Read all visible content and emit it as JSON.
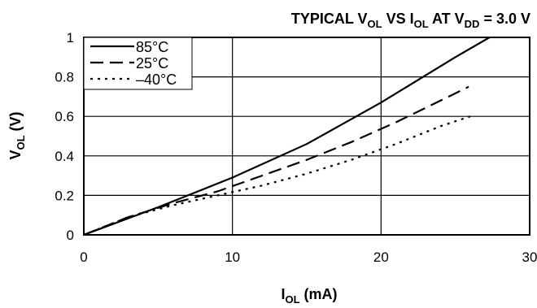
{
  "chart_data": {
    "type": "line",
    "title": {
      "pre": "TYPICAL V",
      "sub1": "OL",
      "mid": " VS I",
      "sub2": "OL",
      "mid2": " AT V",
      "sub3": "DD",
      "post": " = 3.0 V"
    },
    "xlabel": {
      "main": "I",
      "sub": "OL",
      "post": " (mA)"
    },
    "ylabel": {
      "main": "V",
      "sub": "OL",
      "post": " (V)"
    },
    "xlim": [
      0,
      30
    ],
    "ylim": [
      0,
      1
    ],
    "xticks": [
      "0",
      "10",
      "20",
      "30"
    ],
    "yticks": [
      "0",
      "0.2",
      "0.4",
      "0.6",
      "0.8",
      "1"
    ],
    "grid": true,
    "legend_position": "top-left",
    "series": [
      {
        "name": "85°C",
        "dash": "solid",
        "color": "#000000",
        "x": [
          0,
          5,
          10,
          15,
          20,
          25,
          27.3
        ],
        "y": [
          0,
          0.14,
          0.29,
          0.46,
          0.67,
          0.9,
          1.0
        ]
      },
      {
        "name": "25°C",
        "dash": "dashed",
        "color": "#000000",
        "x": [
          0,
          3,
          6,
          9,
          12,
          15,
          18,
          21,
          24,
          25.9
        ],
        "y": [
          0,
          0.09,
          0.16,
          0.22,
          0.3,
          0.38,
          0.47,
          0.57,
          0.68,
          0.75
        ]
      },
      {
        "name": "–40°C",
        "dash": "dotted",
        "color": "#000000",
        "x": [
          0,
          3,
          6,
          9,
          12,
          15,
          18,
          21,
          24,
          26
        ],
        "y": [
          0,
          0.09,
          0.15,
          0.2,
          0.25,
          0.31,
          0.38,
          0.46,
          0.55,
          0.6
        ]
      }
    ]
  }
}
